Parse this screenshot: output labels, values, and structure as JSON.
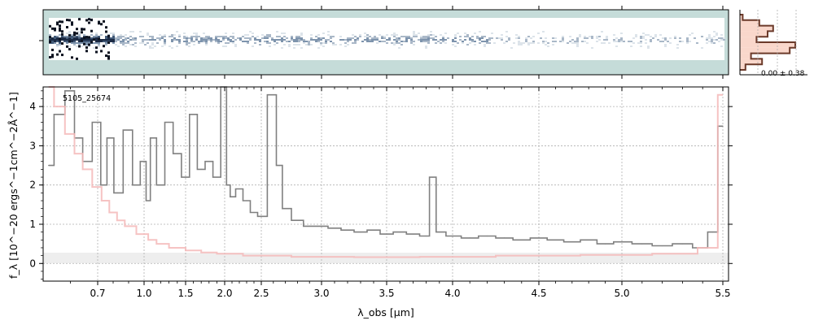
{
  "figure": {
    "object_id": "5105_25674",
    "xlabel": "λ_obs [μm]",
    "ylabel": "f_λ [10^−20 ergs^−1cm^−2Å^−1]",
    "hist_annotation": "0.00 ± 0.38"
  },
  "colors": {
    "flux": "#808080",
    "error": "#f5b8b8",
    "hist_fill": "#f8d3c5",
    "hist_line": "#6b3a2a",
    "twod_bg": "#c5dcd9",
    "grid": "#b0b0b0",
    "zero_band": "#eeeeee"
  },
  "chart_data": {
    "type": "line",
    "title": "",
    "xlabel": "λ_obs [μm]",
    "ylabel": "f_λ [10^−20 ergs^−1cm^−2Å^−1]",
    "x_scale": "wavelength (dispersion-like, non-linear)",
    "xlim": [
      0.5,
      5.55
    ],
    "ylim": [
      -0.45,
      4.5
    ],
    "grid": true,
    "x_ticks": [
      0.7,
      1.0,
      1.5,
      2.0,
      2.5,
      3.0,
      3.5,
      4.0,
      4.5,
      5.0,
      5.5
    ],
    "x_tick_labels": [
      "0.7",
      "1.0",
      "1.5",
      "2.0",
      "2.5",
      "3.0",
      "3.5",
      "4.0",
      "4.5",
      "5.0",
      "5.5"
    ],
    "y_ticks": [
      0,
      1,
      2,
      3,
      4
    ],
    "y_tick_labels": [
      "0",
      "1",
      "2",
      "3",
      "4"
    ],
    "series": [
      {
        "role": "flux",
        "x": [
          0.52,
          0.56,
          0.6,
          0.63,
          0.66,
          0.7,
          0.74,
          0.78,
          0.83,
          0.9,
          0.95,
          1.0,
          1.05,
          1.1,
          1.2,
          1.3,
          1.4,
          1.5,
          1.6,
          1.7,
          1.8,
          1.9,
          2.0,
          2.05,
          2.1,
          2.2,
          2.3,
          2.4,
          2.5,
          2.6,
          2.65,
          2.7,
          2.8,
          2.9,
          3.0,
          3.1,
          3.2,
          3.3,
          3.4,
          3.5,
          3.6,
          3.7,
          3.8,
          3.85,
          3.9,
          4.0,
          4.1,
          4.2,
          4.3,
          4.4,
          4.5,
          4.6,
          4.7,
          4.8,
          4.9,
          5.0,
          5.1,
          5.2,
          5.3,
          5.4,
          5.45,
          5.5
        ],
        "y": [
          2.5,
          3.8,
          4.4,
          3.2,
          2.6,
          3.6,
          2.0,
          3.2,
          1.8,
          3.4,
          2.0,
          2.6,
          1.6,
          3.2,
          2.0,
          3.6,
          2.8,
          2.2,
          3.8,
          2.4,
          2.6,
          2.2,
          4.5,
          2.0,
          1.7,
          1.9,
          1.6,
          1.3,
          1.2,
          4.3,
          2.5,
          1.4,
          1.1,
          0.95,
          0.95,
          0.9,
          0.85,
          0.8,
          0.85,
          0.75,
          0.8,
          0.75,
          0.7,
          2.2,
          0.8,
          0.7,
          0.65,
          0.7,
          0.65,
          0.6,
          0.65,
          0.6,
          0.55,
          0.6,
          0.5,
          0.55,
          0.5,
          0.45,
          0.5,
          0.4,
          0.8,
          3.5
        ]
      },
      {
        "role": "uncertainty",
        "x": [
          0.52,
          0.56,
          0.6,
          0.63,
          0.66,
          0.7,
          0.75,
          0.8,
          0.85,
          0.9,
          1.0,
          1.1,
          1.2,
          1.4,
          1.6,
          1.8,
          2.0,
          2.5,
          3.0,
          3.5,
          4.0,
          4.5,
          5.0,
          5.3,
          5.45,
          5.5
        ],
        "y": [
          4.5,
          4.0,
          3.3,
          2.8,
          2.4,
          1.95,
          1.6,
          1.3,
          1.1,
          0.95,
          0.75,
          0.6,
          0.5,
          0.4,
          0.33,
          0.28,
          0.25,
          0.2,
          0.17,
          0.16,
          0.17,
          0.2,
          0.22,
          0.25,
          0.4,
          4.3
        ]
      }
    ],
    "histogram": {
      "annotation": "0.00 ± 0.38",
      "levels": [
        0.05,
        0.35,
        0.6,
        0.5,
        0.3,
        1.0,
        0.9,
        0.2,
        0.4,
        0.1
      ]
    }
  }
}
